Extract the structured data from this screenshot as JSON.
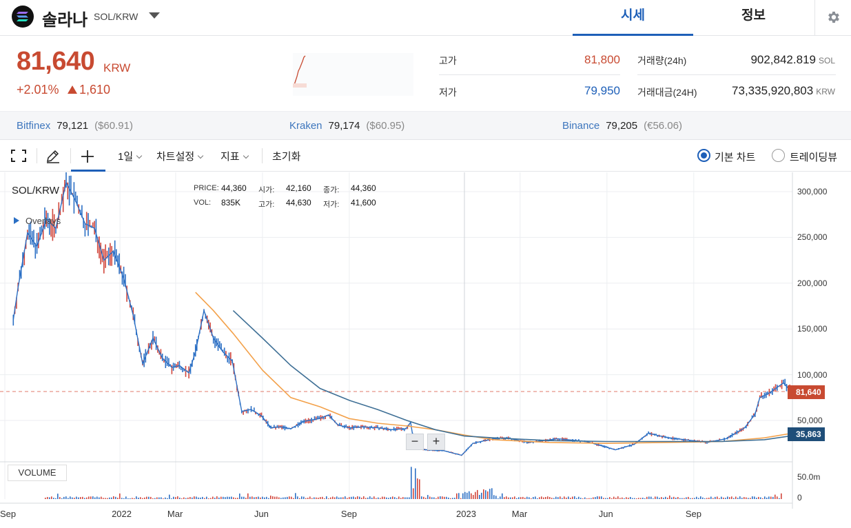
{
  "header": {
    "coin_name": "솔라나",
    "pair": "SOL/KRW",
    "tabs": [
      {
        "label": "시세",
        "active": true
      },
      {
        "label": "정보",
        "active": false
      }
    ],
    "settings_icon": "gear-icon",
    "logo_icon": "solana-logo-icon"
  },
  "price": {
    "current": "81,640",
    "unit": "KRW",
    "change_pct": "+2.01%",
    "change_abs": "1,610",
    "direction": "up",
    "color": "#c84a31"
  },
  "stats": {
    "high_label": "고가",
    "high": "81,800",
    "low_label": "저가",
    "low": "79,950",
    "volume_label": "거래량(24h)",
    "volume": "902,842.819",
    "volume_unit": "SOL",
    "amount_label": "거래대금(24H)",
    "amount": "73,335,920,803",
    "amount_unit": "KRW"
  },
  "exchanges": [
    {
      "name": "Bitfinex",
      "price": "79,121",
      "alt": "($60.91)"
    },
    {
      "name": "Kraken",
      "price": "79,174",
      "alt": "($60.95)"
    },
    {
      "name": "Binance",
      "price": "79,205",
      "alt": "(€56.06)"
    }
  ],
  "toolbar": {
    "interval": "1일",
    "chart_settings": "차트설정",
    "indicators": "지표",
    "reset": "초기화",
    "radio_basic": "기본 차트",
    "radio_tv": "트레이딩뷰",
    "icons": [
      "fullscreen-icon",
      "pencil-icon",
      "crosshair-icon"
    ]
  },
  "chart_info": {
    "price_k": "PRICE:",
    "price_v": "44,360",
    "open_k": "시가:",
    "open_v": "42,160",
    "close_k": "종가:",
    "close_v": "44,360",
    "vol_k": "VOL:",
    "vol_v": "835K",
    "high_k": "고가:",
    "high_v": "44,630",
    "low_k": "저가:",
    "low_v": "41,600"
  },
  "chart_labels": {
    "pair": "SOL/KRW",
    "overlays": "Overlays",
    "volume": "VOLUME",
    "last_price_tag": "81,640",
    "ma_tag": "35,863",
    "zoom_out": "−",
    "zoom_in": "+"
  },
  "chart_data": {
    "type": "line",
    "title": "",
    "x_ticks": [
      "Sep",
      "2022",
      "Mar",
      "Jun",
      "Sep",
      "2023",
      "Mar",
      "Jun",
      "Sep"
    ],
    "y_ticks": [
      "300,000",
      "250,000",
      "200,000",
      "150,000",
      "100,000",
      "50,000"
    ],
    "ylim": [
      0,
      320000
    ],
    "volume_ticks": [
      "50.0m",
      "0"
    ],
    "last_price": 81640,
    "grid": true,
    "series": [
      {
        "name": "",
        "color": "#2b6fc4",
        "points": [
          [
            "2021-09-10",
            160000
          ],
          [
            "2021-09-15",
            195000
          ],
          [
            "2021-09-25",
            255000
          ],
          [
            "2021-10-05",
            240000
          ],
          [
            "2021-10-15",
            270000
          ],
          [
            "2021-10-25",
            260000
          ],
          [
            "2021-11-05",
            310000
          ],
          [
            "2021-11-15",
            290000
          ],
          [
            "2021-11-25",
            265000
          ],
          [
            "2021-12-05",
            260000
          ],
          [
            "2021-12-15",
            225000
          ],
          [
            "2021-12-25",
            235000
          ],
          [
            "2022-01-05",
            205000
          ],
          [
            "2022-01-15",
            165000
          ],
          [
            "2022-01-25",
            112000
          ],
          [
            "2022-02-05",
            140000
          ],
          [
            "2022-02-15",
            118000
          ],
          [
            "2022-02-25",
            108000
          ],
          [
            "2022-03-05",
            110000
          ],
          [
            "2022-03-15",
            102000
          ],
          [
            "2022-03-22",
            125000
          ],
          [
            "2022-03-31",
            170000
          ],
          [
            "2022-04-10",
            140000
          ],
          [
            "2022-04-20",
            125000
          ],
          [
            "2022-04-30",
            115000
          ],
          [
            "2022-05-10",
            60000
          ],
          [
            "2022-05-20",
            62000
          ],
          [
            "2022-05-31",
            55000
          ],
          [
            "2022-06-10",
            42000
          ],
          [
            "2022-06-20",
            43000
          ],
          [
            "2022-07-01",
            41000
          ],
          [
            "2022-07-15",
            49000
          ],
          [
            "2022-07-31",
            52000
          ],
          [
            "2022-08-10",
            56000
          ],
          [
            "2022-08-20",
            45000
          ],
          [
            "2022-09-01",
            42000
          ],
          [
            "2022-09-15",
            43000
          ],
          [
            "2022-10-01",
            42000
          ],
          [
            "2022-10-15",
            40000
          ],
          [
            "2022-10-31",
            41000
          ],
          [
            "2022-11-05",
            48000
          ],
          [
            "2022-11-09",
            22000
          ],
          [
            "2022-11-20",
            18000
          ],
          [
            "2022-12-10",
            17000
          ],
          [
            "2022-12-29",
            12000
          ],
          [
            "2023-01-10",
            25000
          ],
          [
            "2023-01-31",
            30000
          ],
          [
            "2023-02-15",
            31000
          ],
          [
            "2023-03-10",
            26000
          ],
          [
            "2023-04-10",
            30000
          ],
          [
            "2023-05-10",
            27000
          ],
          [
            "2023-06-10",
            18000
          ],
          [
            "2023-06-30",
            24000
          ],
          [
            "2023-07-15",
            36000
          ],
          [
            "2023-08-05",
            31000
          ],
          [
            "2023-08-31",
            28000
          ],
          [
            "2023-09-15",
            26000
          ],
          [
            "2023-10-05",
            30000
          ],
          [
            "2023-10-25",
            42000
          ],
          [
            "2023-11-05",
            57000
          ],
          [
            "2023-11-10",
            75000
          ],
          [
            "2023-11-20",
            80000
          ],
          [
            "2023-12-05",
            91000
          ],
          [
            "2023-12-15",
            80000
          ],
          [
            "2023-12-31",
            81640
          ]
        ]
      },
      {
        "name": "",
        "color": "#f3a14a",
        "points": [
          [
            "2022-03-22",
            190000
          ],
          [
            "2022-04-10",
            170000
          ],
          [
            "2022-05-01",
            145000
          ],
          [
            "2022-06-01",
            105000
          ],
          [
            "2022-07-01",
            75000
          ],
          [
            "2022-08-01",
            65000
          ],
          [
            "2022-09-01",
            52000
          ],
          [
            "2022-10-01",
            47000
          ],
          [
            "2022-11-01",
            44000
          ],
          [
            "2022-12-01",
            40000
          ],
          [
            "2023-01-01",
            34000
          ],
          [
            "2023-02-01",
            29000
          ],
          [
            "2023-04-01",
            26000
          ],
          [
            "2023-06-01",
            25000
          ],
          [
            "2023-08-01",
            26000
          ],
          [
            "2023-10-01",
            27000
          ],
          [
            "2023-11-15",
            31000
          ],
          [
            "2023-12-31",
            39000
          ]
        ]
      },
      {
        "name": "",
        "color": "#3e6f95",
        "points": [
          [
            "2022-05-01",
            170000
          ],
          [
            "2022-06-01",
            140000
          ],
          [
            "2022-07-01",
            110000
          ],
          [
            "2022-08-01",
            85000
          ],
          [
            "2022-09-01",
            72000
          ],
          [
            "2022-10-01",
            62000
          ],
          [
            "2022-11-01",
            50000
          ],
          [
            "2022-12-01",
            40000
          ],
          [
            "2023-01-01",
            33000
          ],
          [
            "2023-02-01",
            31000
          ],
          [
            "2023-04-01",
            28000
          ],
          [
            "2023-06-01",
            27000
          ],
          [
            "2023-08-01",
            27000
          ],
          [
            "2023-10-01",
            27000
          ],
          [
            "2023-11-15",
            29000
          ],
          [
            "2023-12-31",
            35863
          ]
        ]
      }
    ]
  }
}
